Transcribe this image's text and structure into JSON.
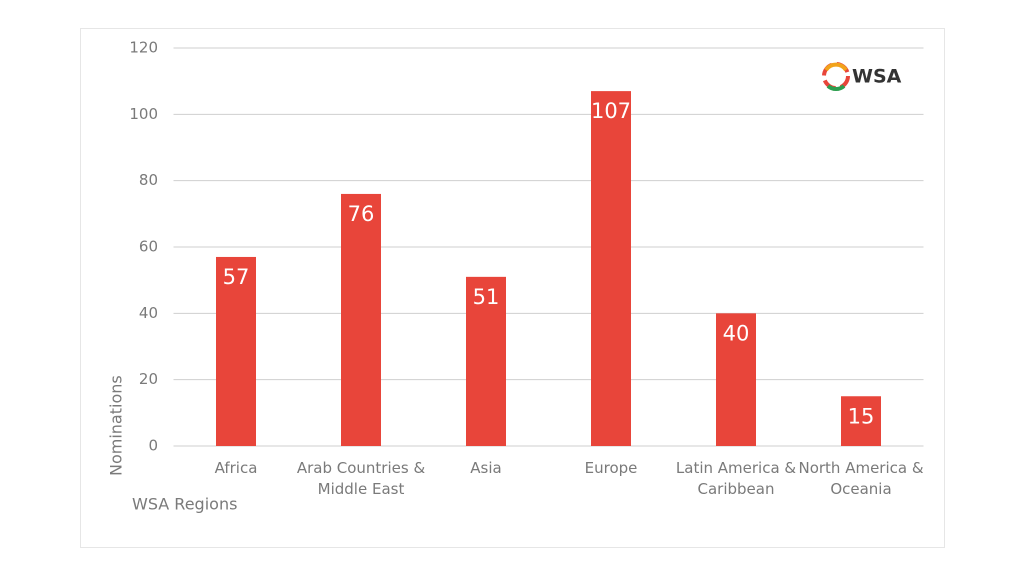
{
  "chart_data": {
    "type": "bar",
    "x_label": "WSA Regions",
    "y_label": "Nominations",
    "logo": "WSA",
    "categories": [
      "Africa",
      "Arab Countries &\nMiddle East",
      "Asia",
      "Europe",
      "Latin America &\nCaribbean",
      "North America &\nOceania"
    ],
    "values": [
      57,
      76,
      51,
      107,
      40,
      15
    ],
    "color": "#e8453a",
    "ylim": [
      0,
      120
    ],
    "yticks": [
      0,
      20,
      40,
      60,
      80,
      100,
      120
    ],
    "grid": true
  }
}
